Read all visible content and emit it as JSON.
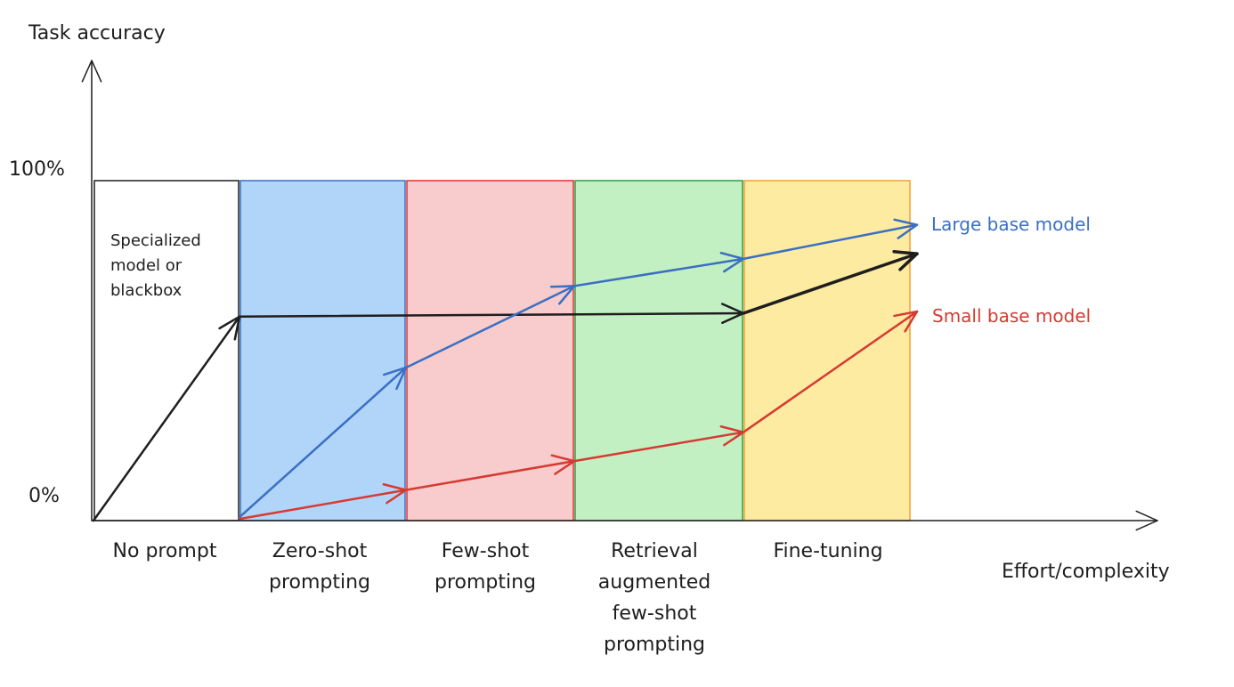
{
  "y_axis_label": "Task accuracy",
  "x_axis_label": "Effort/complexity",
  "y_ticks": [
    "100%",
    "0%"
  ],
  "stages": [
    {
      "label": "No prompt",
      "fill": "#ffffff",
      "stroke": "#1e1e1e"
    },
    {
      "label": "Zero-shot prompting",
      "fill": "#b1d5f8",
      "stroke": "#3a6fc2"
    },
    {
      "label": "Few-shot prompting",
      "fill": "#f8cccc",
      "stroke": "#e03131"
    },
    {
      "label": "Retrieval augmented few-shot prompting",
      "fill": "#c2f0c2",
      "stroke": "#2f9e44"
    },
    {
      "label": "Fine-tuning",
      "fill": "#fdeba1",
      "stroke": "#f0a030"
    }
  ],
  "note": "Specialized model or blackbox",
  "chart_data": {
    "type": "line",
    "x_unit": "stage boundary",
    "y_unit": "%",
    "ylim": [
      0,
      100
    ],
    "series": [
      {
        "name": "",
        "color": "#1e1e1e",
        "points": [
          [
            0,
            0
          ],
          [
            1,
            60
          ],
          [
            4,
            61
          ],
          [
            5,
            78.5
          ]
        ]
      },
      {
        "name": "Large base model",
        "color": "#3a6fc2",
        "points": [
          [
            1,
            1
          ],
          [
            2,
            45
          ],
          [
            3,
            69
          ],
          [
            4,
            77
          ],
          [
            5,
            87
          ]
        ]
      },
      {
        "name": "Small base model",
        "color": "#d63a32",
        "points": [
          [
            1,
            0.5
          ],
          [
            2,
            9
          ],
          [
            3,
            17.5
          ],
          [
            4,
            26
          ],
          [
            5,
            61.5
          ]
        ]
      }
    ]
  }
}
